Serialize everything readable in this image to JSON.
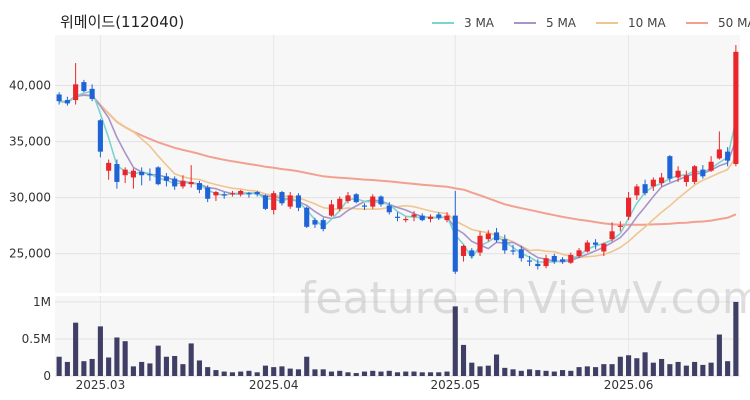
{
  "title": "위메이드(112040)",
  "watermark": "feature.enViewV.com",
  "chart_data": {
    "type": "candlestick",
    "price_axis": {
      "ticks": [
        25000,
        30000,
        35000,
        40000
      ],
      "tick_labels": [
        "25,000",
        "30,000",
        "35,000",
        "40,000"
      ],
      "ylim": [
        21500,
        44500
      ]
    },
    "volume_axis": {
      "ticks": [
        0,
        500000,
        1000000
      ],
      "tick_labels": [
        "0",
        "0.5M",
        "1M"
      ],
      "ylim": [
        0,
        1080000
      ]
    },
    "x_tick_labels": [
      {
        "label": "2025.03",
        "index": 5
      },
      {
        "label": "2025.04",
        "index": 26
      },
      {
        "label": "2025.05",
        "index": 48
      },
      {
        "label": "2025.06",
        "index": 69
      }
    ],
    "grid": true,
    "up_color": "#e8262b",
    "down_color": "#1f64d6",
    "volume_color": "#3f3f66",
    "legend": {
      "placement": "top-right",
      "items": [
        {
          "name": "3 MA",
          "color": "#7fd3cf"
        },
        {
          "name": "5 MA",
          "color": "#a894c8"
        },
        {
          "name": "10 MA",
          "color": "#f0c690"
        },
        {
          "name": "50 MA",
          "color": "#f2a090"
        }
      ]
    },
    "candles": [
      [
        39200,
        39400,
        38300,
        38600
      ],
      [
        38700,
        39000,
        38200,
        38400
      ],
      [
        38700,
        42000,
        38300,
        40100
      ],
      [
        40300,
        40500,
        39400,
        39500
      ],
      [
        39700,
        40100,
        38600,
        38800
      ],
      [
        36900,
        37000,
        33600,
        34100
      ],
      [
        32400,
        33400,
        31600,
        33100
      ],
      [
        33000,
        33400,
        30800,
        31400
      ],
      [
        32000,
        32700,
        31300,
        32500
      ],
      [
        31800,
        32600,
        30800,
        32400
      ],
      [
        32300,
        32700,
        31100,
        32000
      ],
      [
        32100,
        32600,
        31500,
        32000
      ],
      [
        32700,
        32800,
        31100,
        31200
      ],
      [
        31900,
        32200,
        31000,
        31500
      ],
      [
        31700,
        31900,
        30700,
        31000
      ],
      [
        31000,
        32000,
        30800,
        31500
      ],
      [
        31200,
        32900,
        30900,
        31400
      ],
      [
        31300,
        31500,
        30400,
        30700
      ],
      [
        30900,
        31100,
        29600,
        29900
      ],
      [
        30200,
        30600,
        29700,
        30500
      ],
      [
        30300,
        30500,
        29900,
        30200
      ],
      [
        30400,
        30600,
        30100,
        30400
      ],
      [
        30300,
        30700,
        30100,
        30600
      ],
      [
        30400,
        30500,
        30000,
        30300
      ],
      [
        30500,
        30600,
        30100,
        30300
      ],
      [
        30200,
        30300,
        28900,
        29000
      ],
      [
        28900,
        30600,
        28500,
        30400
      ],
      [
        30500,
        30600,
        29300,
        29500
      ],
      [
        29200,
        30500,
        29000,
        30200
      ],
      [
        30200,
        30400,
        28800,
        29100
      ],
      [
        29100,
        29200,
        27300,
        27400
      ],
      [
        28000,
        28200,
        27300,
        27600
      ],
      [
        28000,
        28200,
        27000,
        27200
      ],
      [
        28400,
        29800,
        28300,
        29400
      ],
      [
        29000,
        30100,
        28800,
        29900
      ],
      [
        29700,
        30500,
        29500,
        30200
      ],
      [
        30300,
        30400,
        29500,
        29600
      ],
      [
        29300,
        29500,
        28900,
        29200
      ],
      [
        29200,
        30300,
        29000,
        30100
      ],
      [
        30100,
        30200,
        29200,
        29400
      ],
      [
        29300,
        29600,
        28500,
        28700
      ],
      [
        28300,
        28700,
        27900,
        28200
      ],
      [
        28000,
        28300,
        27800,
        28100
      ],
      [
        28300,
        28800,
        27900,
        28500
      ],
      [
        28400,
        28600,
        27900,
        28000
      ],
      [
        28100,
        28500,
        27800,
        28300
      ],
      [
        28500,
        28700,
        28000,
        28200
      ],
      [
        28000,
        28700,
        27800,
        28400
      ],
      [
        28400,
        30600,
        23200,
        23400
      ],
      [
        24800,
        25800,
        24300,
        25700
      ],
      [
        25300,
        25500,
        24600,
        24800
      ],
      [
        25100,
        27000,
        24800,
        26600
      ],
      [
        26300,
        27100,
        26100,
        26800
      ],
      [
        26900,
        27300,
        26000,
        26200
      ],
      [
        26300,
        26700,
        25000,
        25300
      ],
      [
        25300,
        25800,
        24900,
        25200
      ],
      [
        25400,
        25700,
        24300,
        24600
      ],
      [
        24400,
        24800,
        23900,
        24300
      ],
      [
        24100,
        24500,
        23600,
        23900
      ],
      [
        23900,
        24900,
        23700,
        24600
      ],
      [
        24800,
        25000,
        24100,
        24300
      ],
      [
        24500,
        24700,
        24100,
        24300
      ],
      [
        24200,
        25100,
        24100,
        24900
      ],
      [
        24800,
        25500,
        24600,
        25300
      ],
      [
        25200,
        26200,
        25100,
        26000
      ],
      [
        26000,
        26300,
        25400,
        25800
      ],
      [
        25200,
        26000,
        24800,
        25900
      ],
      [
        26300,
        27800,
        26100,
        27000
      ],
      [
        27400,
        27900,
        27000,
        27500
      ],
      [
        28300,
        30500,
        28000,
        30000
      ],
      [
        30200,
        31200,
        29800,
        31000
      ],
      [
        31200,
        31600,
        30200,
        30400
      ],
      [
        31000,
        31800,
        30600,
        31600
      ],
      [
        31300,
        32200,
        31000,
        31800
      ],
      [
        33700,
        33800,
        31400,
        31700
      ],
      [
        31800,
        32800,
        31400,
        32400
      ],
      [
        31400,
        32400,
        31000,
        32000
      ],
      [
        31400,
        32900,
        31200,
        32800
      ],
      [
        32500,
        32900,
        31700,
        31900
      ],
      [
        32400,
        33700,
        32300,
        33200
      ],
      [
        33500,
        35900,
        33400,
        34300
      ],
      [
        34100,
        34500,
        32800,
        33300
      ],
      [
        33000,
        43600,
        32800,
        43000
      ]
    ],
    "volumes": [
      260000,
      190000,
      720000,
      200000,
      230000,
      670000,
      250000,
      520000,
      470000,
      130000,
      190000,
      170000,
      410000,
      260000,
      270000,
      160000,
      440000,
      210000,
      120000,
      80000,
      60000,
      50000,
      60000,
      70000,
      50000,
      140000,
      120000,
      130000,
      100000,
      90000,
      260000,
      90000,
      90000,
      60000,
      70000,
      50000,
      40000,
      60000,
      70000,
      60000,
      70000,
      50000,
      60000,
      60000,
      50000,
      50000,
      50000,
      60000,
      940000,
      420000,
      180000,
      130000,
      140000,
      290000,
      110000,
      90000,
      70000,
      90000,
      80000,
      70000,
      60000,
      80000,
      70000,
      120000,
      130000,
      120000,
      160000,
      160000,
      260000,
      280000,
      240000,
      320000,
      180000,
      230000,
      160000,
      190000,
      140000,
      190000,
      150000,
      180000,
      560000,
      200000,
      1000000
    ]
  }
}
